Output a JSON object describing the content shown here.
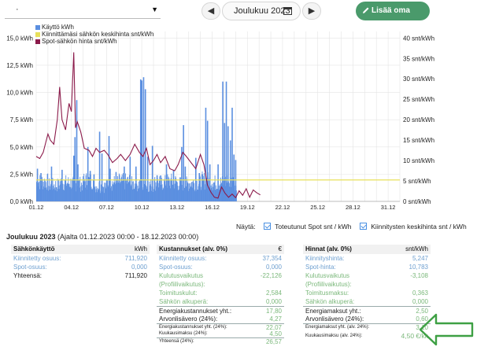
{
  "toolbar": {
    "select_value": "·",
    "prev_icon": "chevron-left",
    "next_icon": "chevron-right",
    "month": "Joulukuu 2023",
    "add_label": "Lisää oma merkintä"
  },
  "legend": [
    {
      "label": "Käyttö kWh",
      "color": "#5b8fe0"
    },
    {
      "label": "Kiinnittämäsi sähkön keskihinta snt/kWh",
      "color": "#e8e05a"
    },
    {
      "label": "Spot-sähkön hinta snt/kWh",
      "color": "#8b1a4a"
    }
  ],
  "chart_data": {
    "type": "bar+line",
    "x_ticks": [
      "01.12",
      "04.12",
      "07.12",
      "10.12",
      "13.12",
      "16.12",
      "19.12",
      "22.12",
      "25.12",
      "28.12",
      "31.12"
    ],
    "y_left_ticks": [
      "0,0 kWh",
      "2,5 kWh",
      "5,0 kWh",
      "7,5 kWh",
      "10,0 kWh",
      "12,5 kWh",
      "15,0 kWh"
    ],
    "y_right_ticks": [
      "0 snt/kWh",
      "5 snt/kWh",
      "10 snt/kWh",
      "15 snt/kWh",
      "20 snt/kWh",
      "25 snt/kWh",
      "30 snt/kWh",
      "35 snt/kWh",
      "40 snt/kWh"
    ],
    "ylim_left": [
      0,
      15.6
    ],
    "ylim_right": [
      0,
      41.6
    ],
    "xlim_days": [
      1,
      32
    ],
    "fixed_price": 5.25,
    "usage_base": [
      [
        1,
        1.8
      ],
      [
        2,
        1.5
      ],
      [
        3,
        1.7
      ],
      [
        4,
        1.6
      ],
      [
        5,
        1.9
      ],
      [
        6,
        1.4
      ],
      [
        7,
        1.7
      ],
      [
        8,
        1.8
      ],
      [
        9,
        1.6
      ],
      [
        10,
        1.5
      ],
      [
        11,
        1.7
      ],
      [
        12,
        1.8
      ],
      [
        13,
        1.6
      ],
      [
        14,
        1.7
      ],
      [
        15,
        1.9
      ],
      [
        16,
        1.7
      ],
      [
        17,
        1.8
      ],
      [
        18,
        1.2
      ]
    ],
    "usage_peaks": [
      [
        1.1,
        3.0
      ],
      [
        1.4,
        2.6
      ],
      [
        2.3,
        3.2
      ],
      [
        3.2,
        2.9
      ],
      [
        4.2,
        4.2
      ],
      [
        4.3,
        5.9
      ],
      [
        4.45,
        9.3
      ],
      [
        4.55,
        3.4
      ],
      [
        5.4,
        5.0
      ],
      [
        5.6,
        2.8
      ],
      [
        6.4,
        6.4
      ],
      [
        6.6,
        4.4
      ],
      [
        7.2,
        6.0
      ],
      [
        7.3,
        3.0
      ],
      [
        7.8,
        2.7
      ],
      [
        8.5,
        3.2
      ],
      [
        9.0,
        4.1
      ],
      [
        9.5,
        3.2
      ],
      [
        9.9,
        11.2
      ],
      [
        10.0,
        11.1
      ],
      [
        10.15,
        11.4
      ],
      [
        10.3,
        10.3
      ],
      [
        10.5,
        4.1
      ],
      [
        10.9,
        5.1
      ],
      [
        11.3,
        2.4
      ],
      [
        12.1,
        3.4
      ],
      [
        12.7,
        2.9
      ],
      [
        13.4,
        5.0
      ],
      [
        13.55,
        7.0
      ],
      [
        13.7,
        3.2
      ],
      [
        14.6,
        4.0
      ],
      [
        14.9,
        2.6
      ],
      [
        15.45,
        8.6
      ],
      [
        15.6,
        7.4
      ],
      [
        15.8,
        3.4
      ],
      [
        16.5,
        3.4
      ],
      [
        16.9,
        11.0
      ],
      [
        17.05,
        7.2
      ],
      [
        17.2,
        11.0
      ],
      [
        17.35,
        6.9
      ],
      [
        17.55,
        5.6
      ],
      [
        17.7,
        8.6
      ],
      [
        17.85,
        4.3
      ],
      [
        18.0,
        3.8
      ]
    ],
    "spot_price": [
      [
        1.0,
        11.0
      ],
      [
        1.3,
        10.5
      ],
      [
        1.6,
        12.0
      ],
      [
        2.0,
        16.5
      ],
      [
        2.2,
        15.0
      ],
      [
        2.5,
        14.0
      ],
      [
        2.8,
        20.0
      ],
      [
        3.0,
        28.0
      ],
      [
        3.2,
        20.0
      ],
      [
        3.5,
        17.5
      ],
      [
        3.8,
        24.0
      ],
      [
        4.0,
        22.0
      ],
      [
        4.2,
        36.5
      ],
      [
        4.35,
        18.0
      ],
      [
        4.5,
        19.5
      ],
      [
        4.8,
        17.0
      ],
      [
        5.1,
        13.0
      ],
      [
        5.5,
        12.5
      ],
      [
        5.8,
        11.0
      ],
      [
        6.1,
        13.0
      ],
      [
        6.4,
        12.0
      ],
      [
        6.8,
        12.5
      ],
      [
        7.1,
        11.5
      ],
      [
        7.5,
        9.5
      ],
      [
        7.9,
        10.5
      ],
      [
        8.2,
        11.5
      ],
      [
        8.6,
        10.0
      ],
      [
        9.0,
        11.5
      ],
      [
        9.4,
        14.0
      ],
      [
        9.8,
        12.0
      ],
      [
        10.1,
        11.0
      ],
      [
        10.4,
        13.0
      ],
      [
        10.7,
        9.0
      ],
      [
        11.0,
        10.0
      ],
      [
        11.3,
        11.5
      ],
      [
        11.6,
        9.5
      ],
      [
        12.0,
        11.0
      ],
      [
        12.4,
        8.0
      ],
      [
        12.8,
        7.5
      ],
      [
        13.1,
        9.0
      ],
      [
        13.5,
        12.0
      ],
      [
        13.8,
        11.0
      ],
      [
        14.2,
        9.5
      ],
      [
        14.6,
        8.0
      ],
      [
        15.0,
        11.5
      ],
      [
        15.3,
        9.0
      ],
      [
        15.6,
        4.0
      ],
      [
        15.9,
        2.2
      ],
      [
        16.2,
        1.0
      ],
      [
        16.5,
        0.8
      ],
      [
        16.8,
        3.5
      ],
      [
        17.1,
        2.0
      ],
      [
        17.4,
        1.0
      ],
      [
        17.7,
        1.8
      ],
      [
        18.0,
        0.9
      ],
      [
        18.3,
        2.6
      ],
      [
        18.6,
        1.5
      ],
      [
        18.9,
        3.1
      ],
      [
        19.2,
        1.0
      ],
      [
        19.5,
        2.8
      ],
      [
        19.8,
        2.1
      ],
      [
        20.1,
        1.6
      ]
    ]
  },
  "show": {
    "label": "Näytä:",
    "opt1": "Toteutunut Spot snt / kWh",
    "opt2": "Kiinnitysten keskihinta snt / kWh"
  },
  "period": {
    "title": "Joulukuu 2023",
    "range": "(Ajalta 01.12.2023 00:00 - 18.12.2023 00:00)"
  },
  "panel1": {
    "title": "Sähkönkäyttö",
    "unit": "kWh",
    "rows": [
      {
        "label": "Kiinnitetty osuus:",
        "value": "711,920"
      },
      {
        "label": "Spot-osuus:",
        "value": "0,000"
      },
      {
        "label": "Yhteensä:",
        "value": "711,920"
      }
    ]
  },
  "panel2": {
    "title": "Kustannukset (alv. 0%)",
    "unit": "€",
    "rows": [
      {
        "label": "Kiinnitetty osuus:",
        "value": "37,354"
      },
      {
        "label": "Spot-osuus:",
        "value": "0,000"
      },
      {
        "label": "Kulutusvaikutus",
        "value": "-22,126"
      },
      {
        "label": "(Profiilivaikutus):",
        "value": ""
      },
      {
        "label": "Toimituskulut:",
        "value": "2,584"
      },
      {
        "label": "Sähkön alkuperä:",
        "value": "0,000"
      },
      {
        "label": "Energiakustannukset yht.:",
        "value": "17,80"
      },
      {
        "label": "Arvonlisävero (24%):",
        "value": "4,27"
      },
      {
        "label": "Energiakustannukset yht. (24%):",
        "value": "22,07"
      },
      {
        "label": "Kuukausimaksu (24%):",
        "value": "4,50"
      },
      {
        "label": "Yhteensä (24%):",
        "value": "26,57"
      }
    ]
  },
  "panel3": {
    "title": "Hinnat (alv. 0%)",
    "unit": "snt/kWh",
    "rows": [
      {
        "label": "Kiinnityshinta:",
        "value": "5,247"
      },
      {
        "label": "Spot-hinta:",
        "value": "10,783"
      },
      {
        "label": "Kulutusvaikutus",
        "value": "-3,108"
      },
      {
        "label": "(Profiilivaikutus):",
        "value": ""
      },
      {
        "label": "Toimitusmaksu:",
        "value": "0,363"
      },
      {
        "label": "Sähkön alkuperä:",
        "value": "0,000"
      },
      {
        "label": "Energiamaksut yht.:",
        "value": "2,50"
      },
      {
        "label": "Arvonlisävero (24%):",
        "value": "0,60"
      },
      {
        "label": "Energiamaksut yht. (alv. 24%):",
        "value": "3,10"
      },
      {
        "label": "Kuukausimaksu (alv. 24%):",
        "value": "4,50 €/kk"
      }
    ]
  }
}
